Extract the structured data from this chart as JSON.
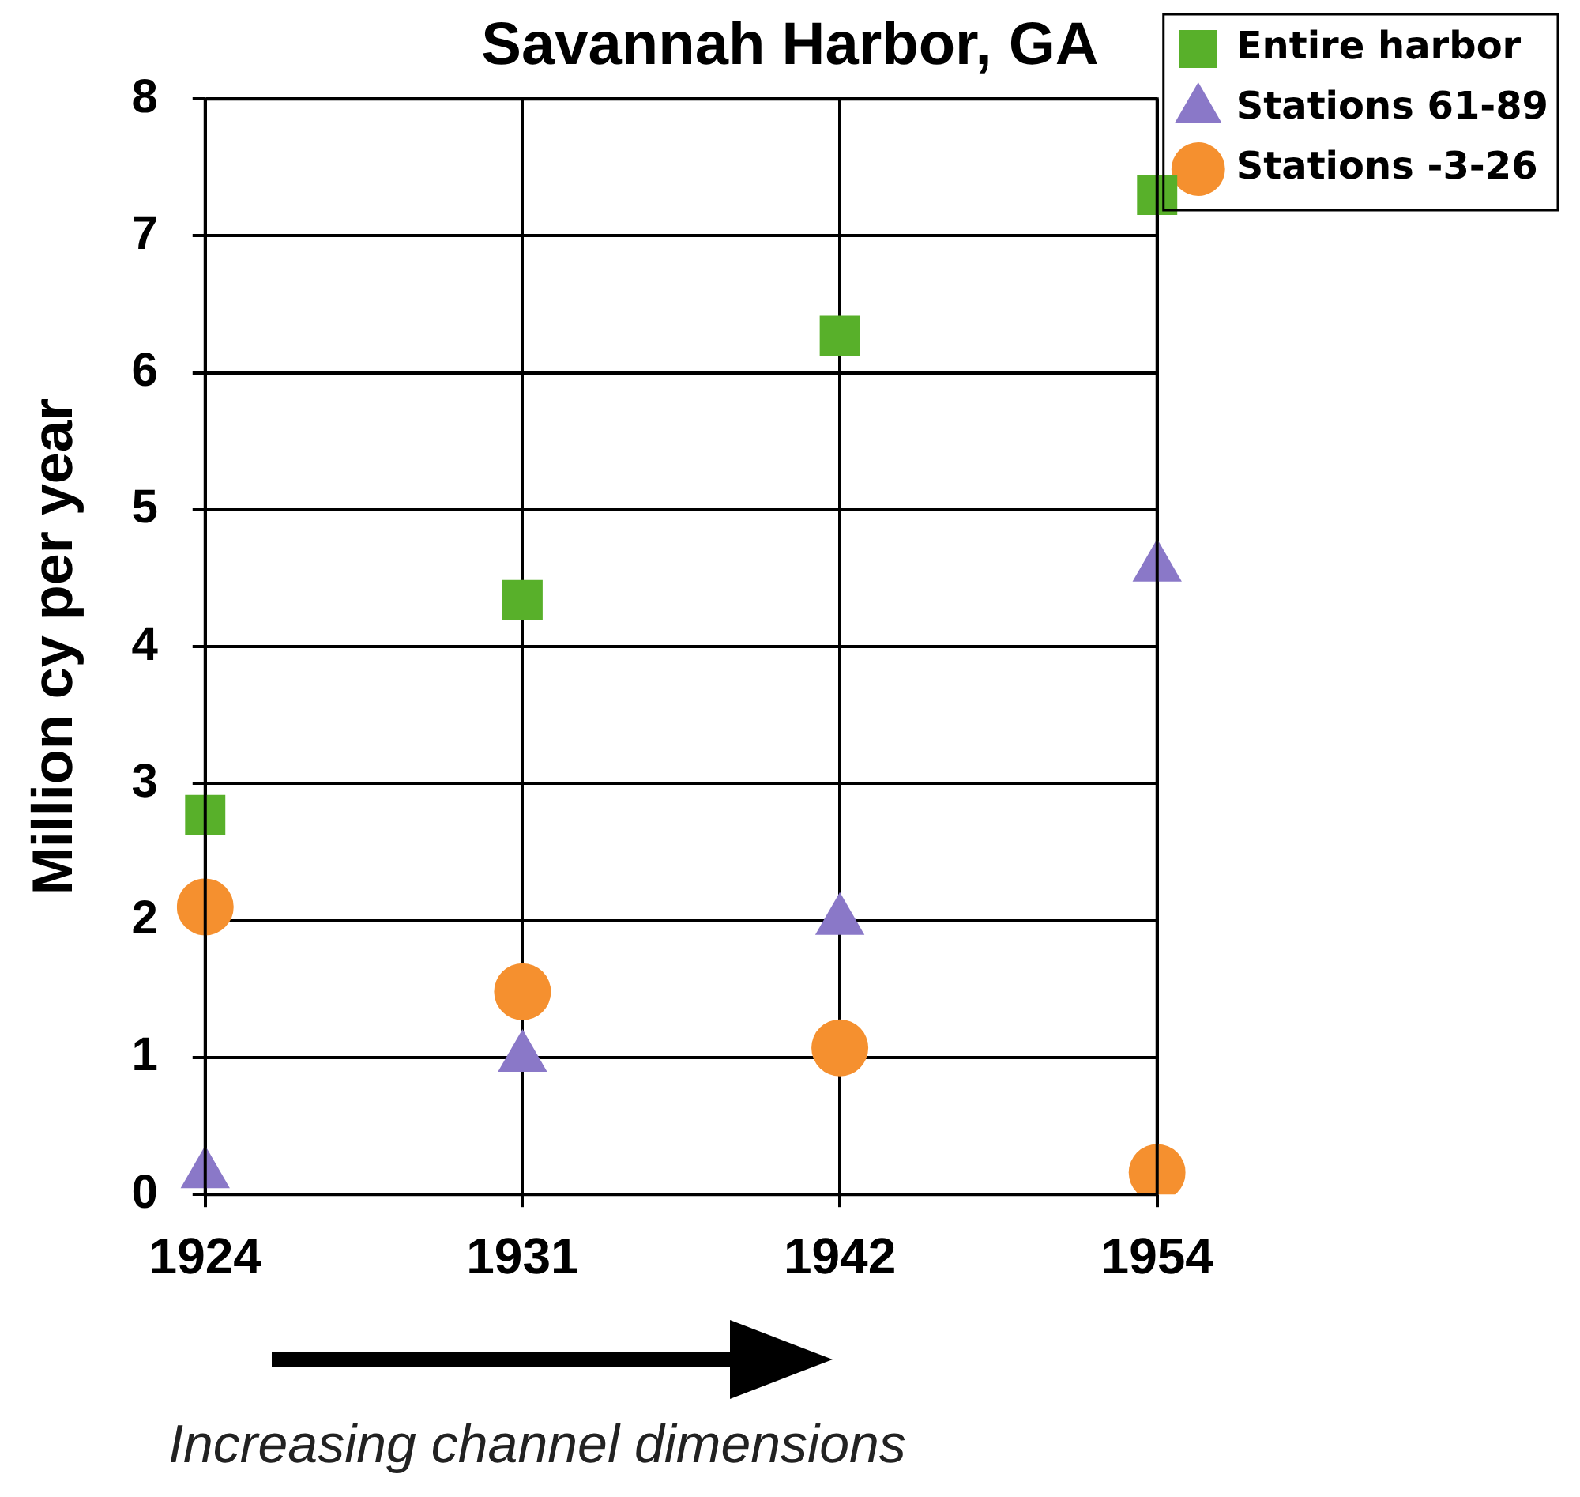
{
  "chart_data": {
    "type": "scatter",
    "title": "Savannah Harbor, GA",
    "ylabel": "Million cy per year",
    "categories": [
      "1924",
      "1931",
      "1942",
      "1954"
    ],
    "series": [
      {
        "name": "Entire harbor",
        "color": "#58b02a",
        "marker": "square",
        "values": [
          2.77,
          4.34,
          6.27,
          7.3
        ]
      },
      {
        "name": "Stations 61-89",
        "color": "#8a78c8",
        "marker": "triangle",
        "values": [
          0.15,
          1.0,
          2.0,
          4.58
        ]
      },
      {
        "name": "Stations -3-26",
        "color": "#f5902f",
        "marker": "circle",
        "values": [
          2.1,
          1.48,
          1.07,
          0.16
        ]
      }
    ],
    "ylim": [
      0,
      8
    ],
    "yticks": [
      0,
      1,
      2,
      3,
      4,
      5,
      6,
      7,
      8
    ],
    "grid": true,
    "legend": "top right",
    "annotations": [
      "Increasing channel dimensions"
    ]
  }
}
